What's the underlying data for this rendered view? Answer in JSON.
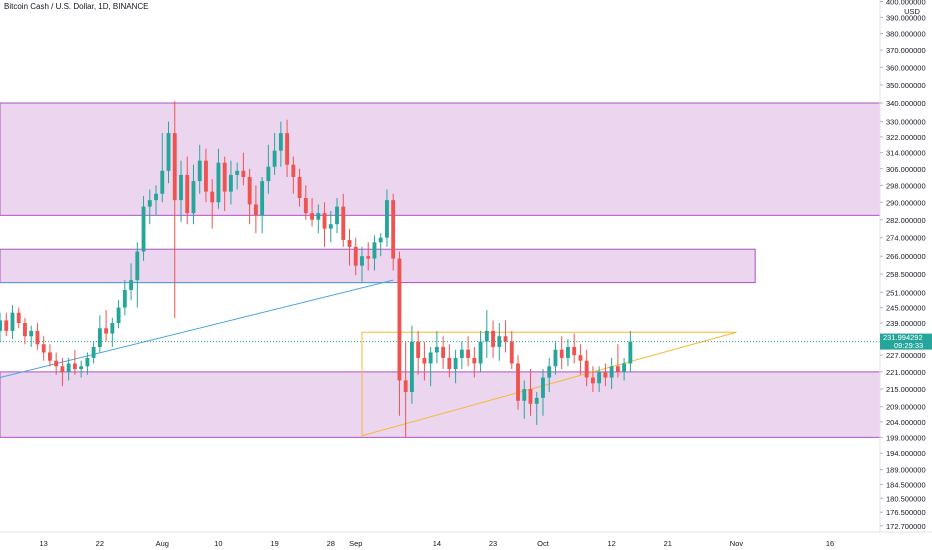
{
  "header": {
    "title": "Bitcoin Cash / U.S. Dollar, 1D, BINANCE"
  },
  "colors": {
    "up": "#26a69a",
    "down": "#ef5350",
    "zone_fill": "#e6c8ea",
    "zone_stroke": "#b24fc4",
    "triangle": "#f7b731",
    "trend": "#4aa3df",
    "price_badge": "#26a69a"
  },
  "chart_data": {
    "type": "candlestick",
    "title": "Bitcoin Cash / U.S. Dollar, 1D, BINANCE",
    "y_unit": "USD",
    "y_scale": "log",
    "ylim": [
      171,
      401
    ],
    "grid": false,
    "y_ticks": [
      {
        "value": 400,
        "label": "400.000000"
      },
      {
        "value": 390,
        "label": "390.000000"
      },
      {
        "value": 380,
        "label": "380.000000"
      },
      {
        "value": 370,
        "label": "370.000000"
      },
      {
        "value": 360,
        "label": "360.000000"
      },
      {
        "value": 350,
        "label": "350.000000"
      },
      {
        "value": 340,
        "label": "340.000000"
      },
      {
        "value": 330,
        "label": "330.000000"
      },
      {
        "value": 322,
        "label": "322.000000"
      },
      {
        "value": 314,
        "label": "314.000000"
      },
      {
        "value": 306,
        "label": "306.000000"
      },
      {
        "value": 298,
        "label": "298.000000"
      },
      {
        "value": 290,
        "label": "290.000000"
      },
      {
        "value": 282,
        "label": "282.000000"
      },
      {
        "value": 274,
        "label": "274.000000"
      },
      {
        "value": 266,
        "label": "266.000000"
      },
      {
        "value": 258.5,
        "label": "258.500000"
      },
      {
        "value": 251,
        "label": "251.000000"
      },
      {
        "value": 245,
        "label": "245.000000"
      },
      {
        "value": 239,
        "label": "239.000000"
      },
      {
        "value": 227,
        "label": "227.000000"
      },
      {
        "value": 221,
        "label": "221.000000"
      },
      {
        "value": 215,
        "label": "215.000000"
      },
      {
        "value": 209,
        "label": "209.000000"
      },
      {
        "value": 204,
        "label": "204.000000"
      },
      {
        "value": 199,
        "label": "199.000000"
      },
      {
        "value": 194,
        "label": "194.000000"
      },
      {
        "value": 189,
        "label": "189.000000"
      },
      {
        "value": 184.5,
        "label": "184.500000"
      },
      {
        "value": 180.5,
        "label": "180.500000"
      },
      {
        "value": 176.5,
        "label": "176.500000"
      },
      {
        "value": 172.7,
        "label": "172.700000"
      }
    ],
    "x_ticks": [
      {
        "date": "2020-07-13",
        "label": "13"
      },
      {
        "date": "2020-07-22",
        "label": "22"
      },
      {
        "date": "2020-08-01",
        "label": "Aug"
      },
      {
        "date": "2020-08-10",
        "label": "10"
      },
      {
        "date": "2020-08-19",
        "label": "19"
      },
      {
        "date": "2020-08-28",
        "label": "28"
      },
      {
        "date": "2020-09-01",
        "label": "Sep"
      },
      {
        "date": "2020-09-14",
        "label": "14"
      },
      {
        "date": "2020-09-23",
        "label": "23"
      },
      {
        "date": "2020-10-01",
        "label": "Oct"
      },
      {
        "date": "2020-10-12",
        "label": "12"
      },
      {
        "date": "2020-10-21",
        "label": "21"
      },
      {
        "date": "2020-11-01",
        "label": "Nov"
      },
      {
        "date": "2020-11-16",
        "label": "16"
      }
    ],
    "x_range": [
      "2020-07-06",
      "2020-11-24"
    ],
    "last_price": {
      "value": 231.994292,
      "label": "231.994292",
      "countdown": "09:29:33"
    },
    "zones": [
      {
        "low": 284,
        "high": 340,
        "to_right_edge": true
      },
      {
        "low": 255,
        "high": 269,
        "end": "2020-11-04"
      },
      {
        "low": 199,
        "high": 221,
        "to_right_edge": true
      }
    ],
    "drawings": [
      {
        "kind": "trendline",
        "color": "trend",
        "from": {
          "date": "2020-07-06",
          "y": 219
        },
        "to": {
          "date": "2020-09-07",
          "y": 256
        }
      },
      {
        "kind": "hline",
        "color": "trend",
        "from": {
          "date": "2020-07-06",
          "y": 255
        },
        "to": {
          "date": "2020-09-07",
          "y": 255
        }
      },
      {
        "kind": "triangle",
        "color": "triangle",
        "points": [
          {
            "date": "2020-09-02",
            "y": 199.5
          },
          {
            "date": "2020-11-01",
            "y": 235.5
          },
          {
            "date": "2020-09-02",
            "y": 235.5
          }
        ]
      }
    ],
    "candles": [
      {
        "date": "2020-07-06",
        "open": 236.0,
        "high": 243.0,
        "low": 232.0,
        "close": 240.0
      },
      {
        "date": "2020-07-07",
        "open": 240.0,
        "high": 243.0,
        "low": 234.0,
        "close": 236.0
      },
      {
        "date": "2020-07-08",
        "open": 236.0,
        "high": 246.0,
        "low": 233.0,
        "close": 243.0
      },
      {
        "date": "2020-07-09",
        "open": 243.0,
        "high": 245.0,
        "low": 237.0,
        "close": 239.0
      },
      {
        "date": "2020-07-10",
        "open": 239.0,
        "high": 241.0,
        "low": 231.0,
        "close": 234.0
      },
      {
        "date": "2020-07-11",
        "open": 234.0,
        "high": 238.0,
        "low": 230.0,
        "close": 236.0
      },
      {
        "date": "2020-07-12",
        "open": 236.0,
        "high": 239.0,
        "low": 229.0,
        "close": 231.0
      },
      {
        "date": "2020-07-13",
        "open": 231.0,
        "high": 234.0,
        "low": 225.0,
        "close": 228.0
      },
      {
        "date": "2020-07-14",
        "open": 228.0,
        "high": 231.0,
        "low": 223.0,
        "close": 225.0
      },
      {
        "date": "2020-07-15",
        "open": 225.0,
        "high": 228.0,
        "low": 220.0,
        "close": 223.0
      },
      {
        "date": "2020-07-16",
        "open": 223.0,
        "high": 226.0,
        "low": 216.0,
        "close": 221.0
      },
      {
        "date": "2020-07-17",
        "open": 221.0,
        "high": 226.0,
        "low": 218.0,
        "close": 224.0
      },
      {
        "date": "2020-07-18",
        "open": 224.0,
        "high": 229.0,
        "low": 220.0,
        "close": 222.0
      },
      {
        "date": "2020-07-19",
        "open": 222.0,
        "high": 225.0,
        "low": 219.0,
        "close": 223.0
      },
      {
        "date": "2020-07-20",
        "open": 223.0,
        "high": 228.0,
        "low": 220.0,
        "close": 226.0
      },
      {
        "date": "2020-07-21",
        "open": 226.0,
        "high": 232.0,
        "low": 224.0,
        "close": 230.0
      },
      {
        "date": "2020-07-22",
        "open": 230.0,
        "high": 242.0,
        "low": 228.0,
        "close": 237.0
      },
      {
        "date": "2020-07-23",
        "open": 237.0,
        "high": 244.0,
        "low": 232.0,
        "close": 235.0
      },
      {
        "date": "2020-07-24",
        "open": 235.0,
        "high": 241.0,
        "low": 230.0,
        "close": 239.0
      },
      {
        "date": "2020-07-25",
        "open": 239.0,
        "high": 248.0,
        "low": 237.0,
        "close": 245.0
      },
      {
        "date": "2020-07-26",
        "open": 245.0,
        "high": 256.0,
        "low": 242.0,
        "close": 252.0
      },
      {
        "date": "2020-07-27",
        "open": 252.0,
        "high": 263.0,
        "low": 248.0,
        "close": 256.0
      },
      {
        "date": "2020-07-28",
        "open": 256.0,
        "high": 272.0,
        "low": 245.0,
        "close": 268.0
      },
      {
        "date": "2020-07-29",
        "open": 268.0,
        "high": 293.0,
        "low": 264.0,
        "close": 288.0
      },
      {
        "date": "2020-07-30",
        "open": 288.0,
        "high": 296.0,
        "low": 280.0,
        "close": 291.0
      },
      {
        "date": "2020-07-31",
        "open": 291.0,
        "high": 298.0,
        "low": 284.0,
        "close": 294.0
      },
      {
        "date": "2020-08-01",
        "open": 294.0,
        "high": 324.0,
        "low": 290.0,
        "close": 305.0
      },
      {
        "date": "2020-08-02",
        "open": 305.0,
        "high": 330.0,
        "low": 299.0,
        "close": 324.0
      },
      {
        "date": "2020-08-03",
        "open": 324.0,
        "high": 341.0,
        "low": 241.0,
        "close": 291.0
      },
      {
        "date": "2020-08-04",
        "open": 291.0,
        "high": 310.0,
        "low": 281.0,
        "close": 303.0
      },
      {
        "date": "2020-08-05",
        "open": 303.0,
        "high": 312.0,
        "low": 280.0,
        "close": 285.0
      },
      {
        "date": "2020-08-06",
        "open": 285.0,
        "high": 308.0,
        "low": 280.0,
        "close": 300.0
      },
      {
        "date": "2020-08-07",
        "open": 300.0,
        "high": 318.0,
        "low": 294.0,
        "close": 310.0
      },
      {
        "date": "2020-08-08",
        "open": 310.0,
        "high": 316.0,
        "low": 290.0,
        "close": 295.0
      },
      {
        "date": "2020-08-09",
        "open": 295.0,
        "high": 301.0,
        "low": 278.0,
        "close": 290.0
      },
      {
        "date": "2020-08-10",
        "open": 290.0,
        "high": 316.0,
        "low": 287.0,
        "close": 309.0
      },
      {
        "date": "2020-08-11",
        "open": 309.0,
        "high": 312.0,
        "low": 286.0,
        "close": 295.0
      },
      {
        "date": "2020-08-12",
        "open": 295.0,
        "high": 310.0,
        "low": 289.0,
        "close": 303.0
      },
      {
        "date": "2020-08-13",
        "open": 303.0,
        "high": 309.0,
        "low": 296.0,
        "close": 305.0
      },
      {
        "date": "2020-08-14",
        "open": 305.0,
        "high": 314.0,
        "low": 298.0,
        "close": 302.0
      },
      {
        "date": "2020-08-15",
        "open": 302.0,
        "high": 306.0,
        "low": 280.0,
        "close": 289.0
      },
      {
        "date": "2020-08-16",
        "open": 289.0,
        "high": 298.0,
        "low": 276.0,
        "close": 284.0
      },
      {
        "date": "2020-08-17",
        "open": 284.0,
        "high": 302.0,
        "low": 276.0,
        "close": 300.0
      },
      {
        "date": "2020-08-18",
        "open": 300.0,
        "high": 318.0,
        "low": 294.0,
        "close": 307.0
      },
      {
        "date": "2020-08-19",
        "open": 307.0,
        "high": 324.0,
        "low": 303.0,
        "close": 315.0
      },
      {
        "date": "2020-08-20",
        "open": 315.0,
        "high": 330.0,
        "low": 307.0,
        "close": 324.0
      },
      {
        "date": "2020-08-21",
        "open": 324.0,
        "high": 331.0,
        "low": 302.0,
        "close": 308.0
      },
      {
        "date": "2020-08-22",
        "open": 308.0,
        "high": 312.0,
        "low": 294.0,
        "close": 302.0
      },
      {
        "date": "2020-08-23",
        "open": 302.0,
        "high": 306.0,
        "low": 288.0,
        "close": 292.0
      },
      {
        "date": "2020-08-24",
        "open": 292.0,
        "high": 298.0,
        "low": 282.0,
        "close": 285.0
      },
      {
        "date": "2020-08-25",
        "open": 285.0,
        "high": 292.0,
        "low": 279.0,
        "close": 282.0
      },
      {
        "date": "2020-08-26",
        "open": 282.0,
        "high": 289.0,
        "low": 276.0,
        "close": 285.0
      },
      {
        "date": "2020-08-27",
        "open": 285.0,
        "high": 290.0,
        "low": 270.0,
        "close": 278.0
      },
      {
        "date": "2020-08-28",
        "open": 278.0,
        "high": 286.0,
        "low": 272.0,
        "close": 280.0
      },
      {
        "date": "2020-08-29",
        "open": 280.0,
        "high": 292.0,
        "low": 276.0,
        "close": 288.0
      },
      {
        "date": "2020-08-30",
        "open": 288.0,
        "high": 294.0,
        "low": 270.0,
        "close": 273.0
      },
      {
        "date": "2020-08-31",
        "open": 273.0,
        "high": 278.0,
        "low": 262.0,
        "close": 270.0
      },
      {
        "date": "2020-09-01",
        "open": 270.0,
        "high": 274.0,
        "low": 258.0,
        "close": 262.0
      },
      {
        "date": "2020-09-02",
        "open": 262.0,
        "high": 270.0,
        "low": 255.0,
        "close": 266.0
      },
      {
        "date": "2020-09-03",
        "open": 266.0,
        "high": 272.0,
        "low": 260.0,
        "close": 265.0
      },
      {
        "date": "2020-09-04",
        "open": 265.0,
        "high": 275.0,
        "low": 260.0,
        "close": 272.0
      },
      {
        "date": "2020-09-05",
        "open": 272.0,
        "high": 276.0,
        "low": 266.0,
        "close": 274.0
      },
      {
        "date": "2020-09-06",
        "open": 274.0,
        "high": 296.0,
        "low": 270.0,
        "close": 291.0
      },
      {
        "date": "2020-09-07",
        "open": 291.0,
        "high": 294.0,
        "low": 260.0,
        "close": 265.0
      },
      {
        "date": "2020-09-08",
        "open": 265.0,
        "high": 268.0,
        "low": 206.0,
        "close": 218.0
      },
      {
        "date": "2020-09-09",
        "open": 218.0,
        "high": 232.0,
        "low": 199.0,
        "close": 214.0
      },
      {
        "date": "2020-09-10",
        "open": 214.0,
        "high": 238.0,
        "low": 210.0,
        "close": 232.0
      },
      {
        "date": "2020-09-11",
        "open": 232.0,
        "high": 236.0,
        "low": 220.0,
        "close": 226.0
      },
      {
        "date": "2020-09-12",
        "open": 226.0,
        "high": 232.0,
        "low": 218.0,
        "close": 224.0
      },
      {
        "date": "2020-09-13",
        "open": 224.0,
        "high": 230.0,
        "low": 216.0,
        "close": 228.0
      },
      {
        "date": "2020-09-14",
        "open": 228.0,
        "high": 236.0,
        "low": 224.0,
        "close": 230.0
      },
      {
        "date": "2020-09-15",
        "open": 230.0,
        "high": 234.0,
        "low": 222.0,
        "close": 226.0
      },
      {
        "date": "2020-09-16",
        "open": 226.0,
        "high": 231.0,
        "low": 219.0,
        "close": 222.0
      },
      {
        "date": "2020-09-17",
        "open": 222.0,
        "high": 229.0,
        "low": 217.0,
        "close": 226.0
      },
      {
        "date": "2020-09-18",
        "open": 226.0,
        "high": 232.0,
        "low": 222.0,
        "close": 229.0
      },
      {
        "date": "2020-09-19",
        "open": 229.0,
        "high": 234.0,
        "low": 223.0,
        "close": 226.0
      },
      {
        "date": "2020-09-20",
        "open": 226.0,
        "high": 230.0,
        "low": 219.0,
        "close": 224.0
      },
      {
        "date": "2020-09-21",
        "open": 224.0,
        "high": 236.0,
        "low": 221.0,
        "close": 232.0
      },
      {
        "date": "2020-09-22",
        "open": 232.0,
        "high": 244.0,
        "low": 226.0,
        "close": 236.0
      },
      {
        "date": "2020-09-23",
        "open": 236.0,
        "high": 240.0,
        "low": 226.0,
        "close": 230.0
      },
      {
        "date": "2020-09-24",
        "open": 230.0,
        "high": 239.0,
        "low": 225.0,
        "close": 234.0
      },
      {
        "date": "2020-09-25",
        "open": 234.0,
        "high": 240.0,
        "low": 228.0,
        "close": 232.0
      },
      {
        "date": "2020-09-26",
        "open": 232.0,
        "high": 236.0,
        "low": 222.0,
        "close": 224.0
      },
      {
        "date": "2020-09-27",
        "open": 224.0,
        "high": 227.0,
        "low": 208.0,
        "close": 211.0
      },
      {
        "date": "2020-09-28",
        "open": 211.0,
        "high": 218.0,
        "low": 205.0,
        "close": 215.0
      },
      {
        "date": "2020-09-29",
        "open": 215.0,
        "high": 222.0,
        "low": 206.0,
        "close": 210.0
      },
      {
        "date": "2020-09-30",
        "open": 210.0,
        "high": 214.0,
        "low": 203.0,
        "close": 212.0
      },
      {
        "date": "2020-10-01",
        "open": 212.0,
        "high": 222.0,
        "low": 206.0,
        "close": 219.0
      },
      {
        "date": "2020-10-02",
        "open": 219.0,
        "high": 226.0,
        "low": 214.0,
        "close": 223.0
      },
      {
        "date": "2020-10-03",
        "open": 223.0,
        "high": 232.0,
        "low": 220.0,
        "close": 229.0
      },
      {
        "date": "2020-10-04",
        "open": 229.0,
        "high": 234.0,
        "low": 222.0,
        "close": 226.0
      },
      {
        "date": "2020-10-05",
        "open": 226.0,
        "high": 233.0,
        "low": 223.0,
        "close": 230.0
      },
      {
        "date": "2020-10-06",
        "open": 230.0,
        "high": 235.0,
        "low": 224.0,
        "close": 227.0
      },
      {
        "date": "2020-10-07",
        "open": 227.0,
        "high": 231.0,
        "low": 220.0,
        "close": 225.0
      },
      {
        "date": "2020-10-08",
        "open": 225.0,
        "high": 229.0,
        "low": 216.0,
        "close": 219.0
      },
      {
        "date": "2020-10-09",
        "open": 219.0,
        "high": 223.0,
        "low": 214.0,
        "close": 217.0
      },
      {
        "date": "2020-10-10",
        "open": 217.0,
        "high": 223.0,
        "low": 214.0,
        "close": 221.0
      },
      {
        "date": "2020-10-11",
        "open": 221.0,
        "high": 224.0,
        "low": 216.0,
        "close": 219.0
      },
      {
        "date": "2020-10-12",
        "open": 219.0,
        "high": 226.0,
        "low": 215.0,
        "close": 223.0
      },
      {
        "date": "2020-10-13",
        "open": 223.0,
        "high": 231.0,
        "low": 219.0,
        "close": 221.0
      },
      {
        "date": "2020-10-14",
        "open": 221.0,
        "high": 226.0,
        "low": 218.0,
        "close": 224.0
      },
      {
        "date": "2020-10-15",
        "open": 224.0,
        "high": 236.0,
        "low": 221.0,
        "close": 232.0
      }
    ]
  }
}
